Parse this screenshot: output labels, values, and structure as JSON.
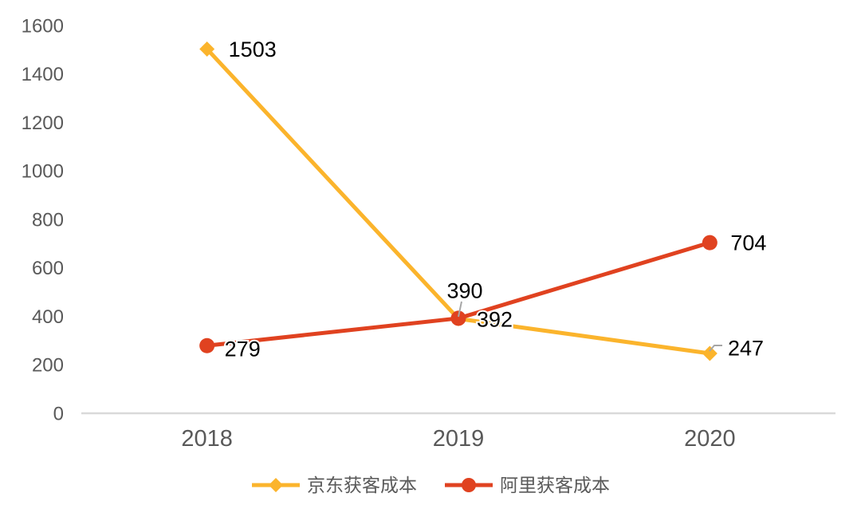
{
  "chart_data": {
    "type": "line",
    "categories": [
      "2018",
      "2019",
      "2020"
    ],
    "series": [
      {
        "name": "京东获客成本",
        "values": [
          1503,
          390,
          247
        ],
        "color": "#FBB42C",
        "marker": "diamond"
      },
      {
        "name": "阿里获客成本",
        "values": [
          279,
          392,
          704
        ],
        "color": "#E04220",
        "marker": "circle"
      }
    ],
    "data_labels": {
      "series0": [
        "1503",
        "390",
        "247"
      ],
      "series1": [
        "279",
        "392",
        "704"
      ]
    },
    "ylim": [
      0,
      1600
    ],
    "ytick_step": 200,
    "yticks": [
      "0",
      "200",
      "400",
      "600",
      "800",
      "1000",
      "1200",
      "1400",
      "1600"
    ],
    "grid": false,
    "legend_position": "bottom",
    "colors": {
      "axis_line": "#D9D9D9",
      "tick_label": "#595959",
      "data_label": "#000000",
      "leader_line": "#A6A6A6",
      "background": "#FFFFFF"
    }
  }
}
